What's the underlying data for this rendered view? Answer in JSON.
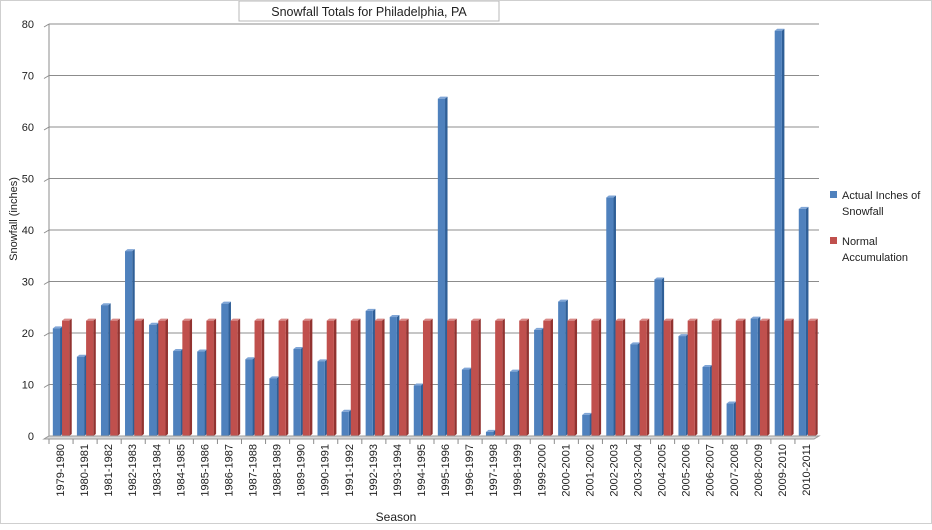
{
  "chart_data": {
    "type": "bar",
    "title": "Snowfall Totals for Philadelphia, PA",
    "xlabel": "Season",
    "ylabel": "Snowfall (inches)",
    "ylim": [
      0,
      80
    ],
    "yticks": [
      0,
      10,
      20,
      30,
      40,
      50,
      60,
      70,
      80
    ],
    "grid": true,
    "legend_position": "right",
    "categories": [
      "1979-1980",
      "1980-1981",
      "1981-1982",
      "1982-1983",
      "1983-1984",
      "1984-1985",
      "1985-1986",
      "1986-1987",
      "1987-1988",
      "1988-1989",
      "1989-1990",
      "1990-1991",
      "1991-1992",
      "1992-1993",
      "1993-1994",
      "1994-1995",
      "1995-1996",
      "1996-1997",
      "1997-1998",
      "1998-1999",
      "1999-2000",
      "2000-2001",
      "2001-2002",
      "2002-2003",
      "2003-2004",
      "2004-2005",
      "2005-2006",
      "2006-2007",
      "2007-2008",
      "2008-2009",
      "2009-2010",
      "2010-2011"
    ],
    "series": [
      {
        "name": "Actual Inches of Snowfall",
        "color": "#4f81bd",
        "values": [
          20.9,
          15.4,
          25.4,
          35.9,
          21.6,
          16.5,
          16.4,
          25.7,
          14.9,
          11.2,
          16.9,
          14.5,
          4.7,
          24.3,
          23.1,
          9.8,
          65.5,
          12.9,
          0.8,
          12.5,
          20.6,
          26.1,
          4.1,
          46.3,
          17.8,
          30.4,
          19.4,
          13.4,
          6.3,
          22.8,
          78.7,
          44.1
        ]
      },
      {
        "name": "Normal Accumulation",
        "color": "#c0504d",
        "values": [
          22.4,
          22.4,
          22.4,
          22.4,
          22.4,
          22.4,
          22.4,
          22.4,
          22.4,
          22.4,
          22.4,
          22.4,
          22.4,
          22.4,
          22.4,
          22.4,
          22.4,
          22.4,
          22.4,
          22.4,
          22.4,
          22.4,
          22.4,
          22.4,
          22.4,
          22.4,
          22.4,
          22.4,
          22.4,
          22.4,
          22.4,
          22.4
        ]
      }
    ],
    "legend": [
      {
        "line1": "Actual Inches of",
        "line2": "Snowfall"
      },
      {
        "line1": "Normal",
        "line2": "Accumulation"
      }
    ]
  }
}
